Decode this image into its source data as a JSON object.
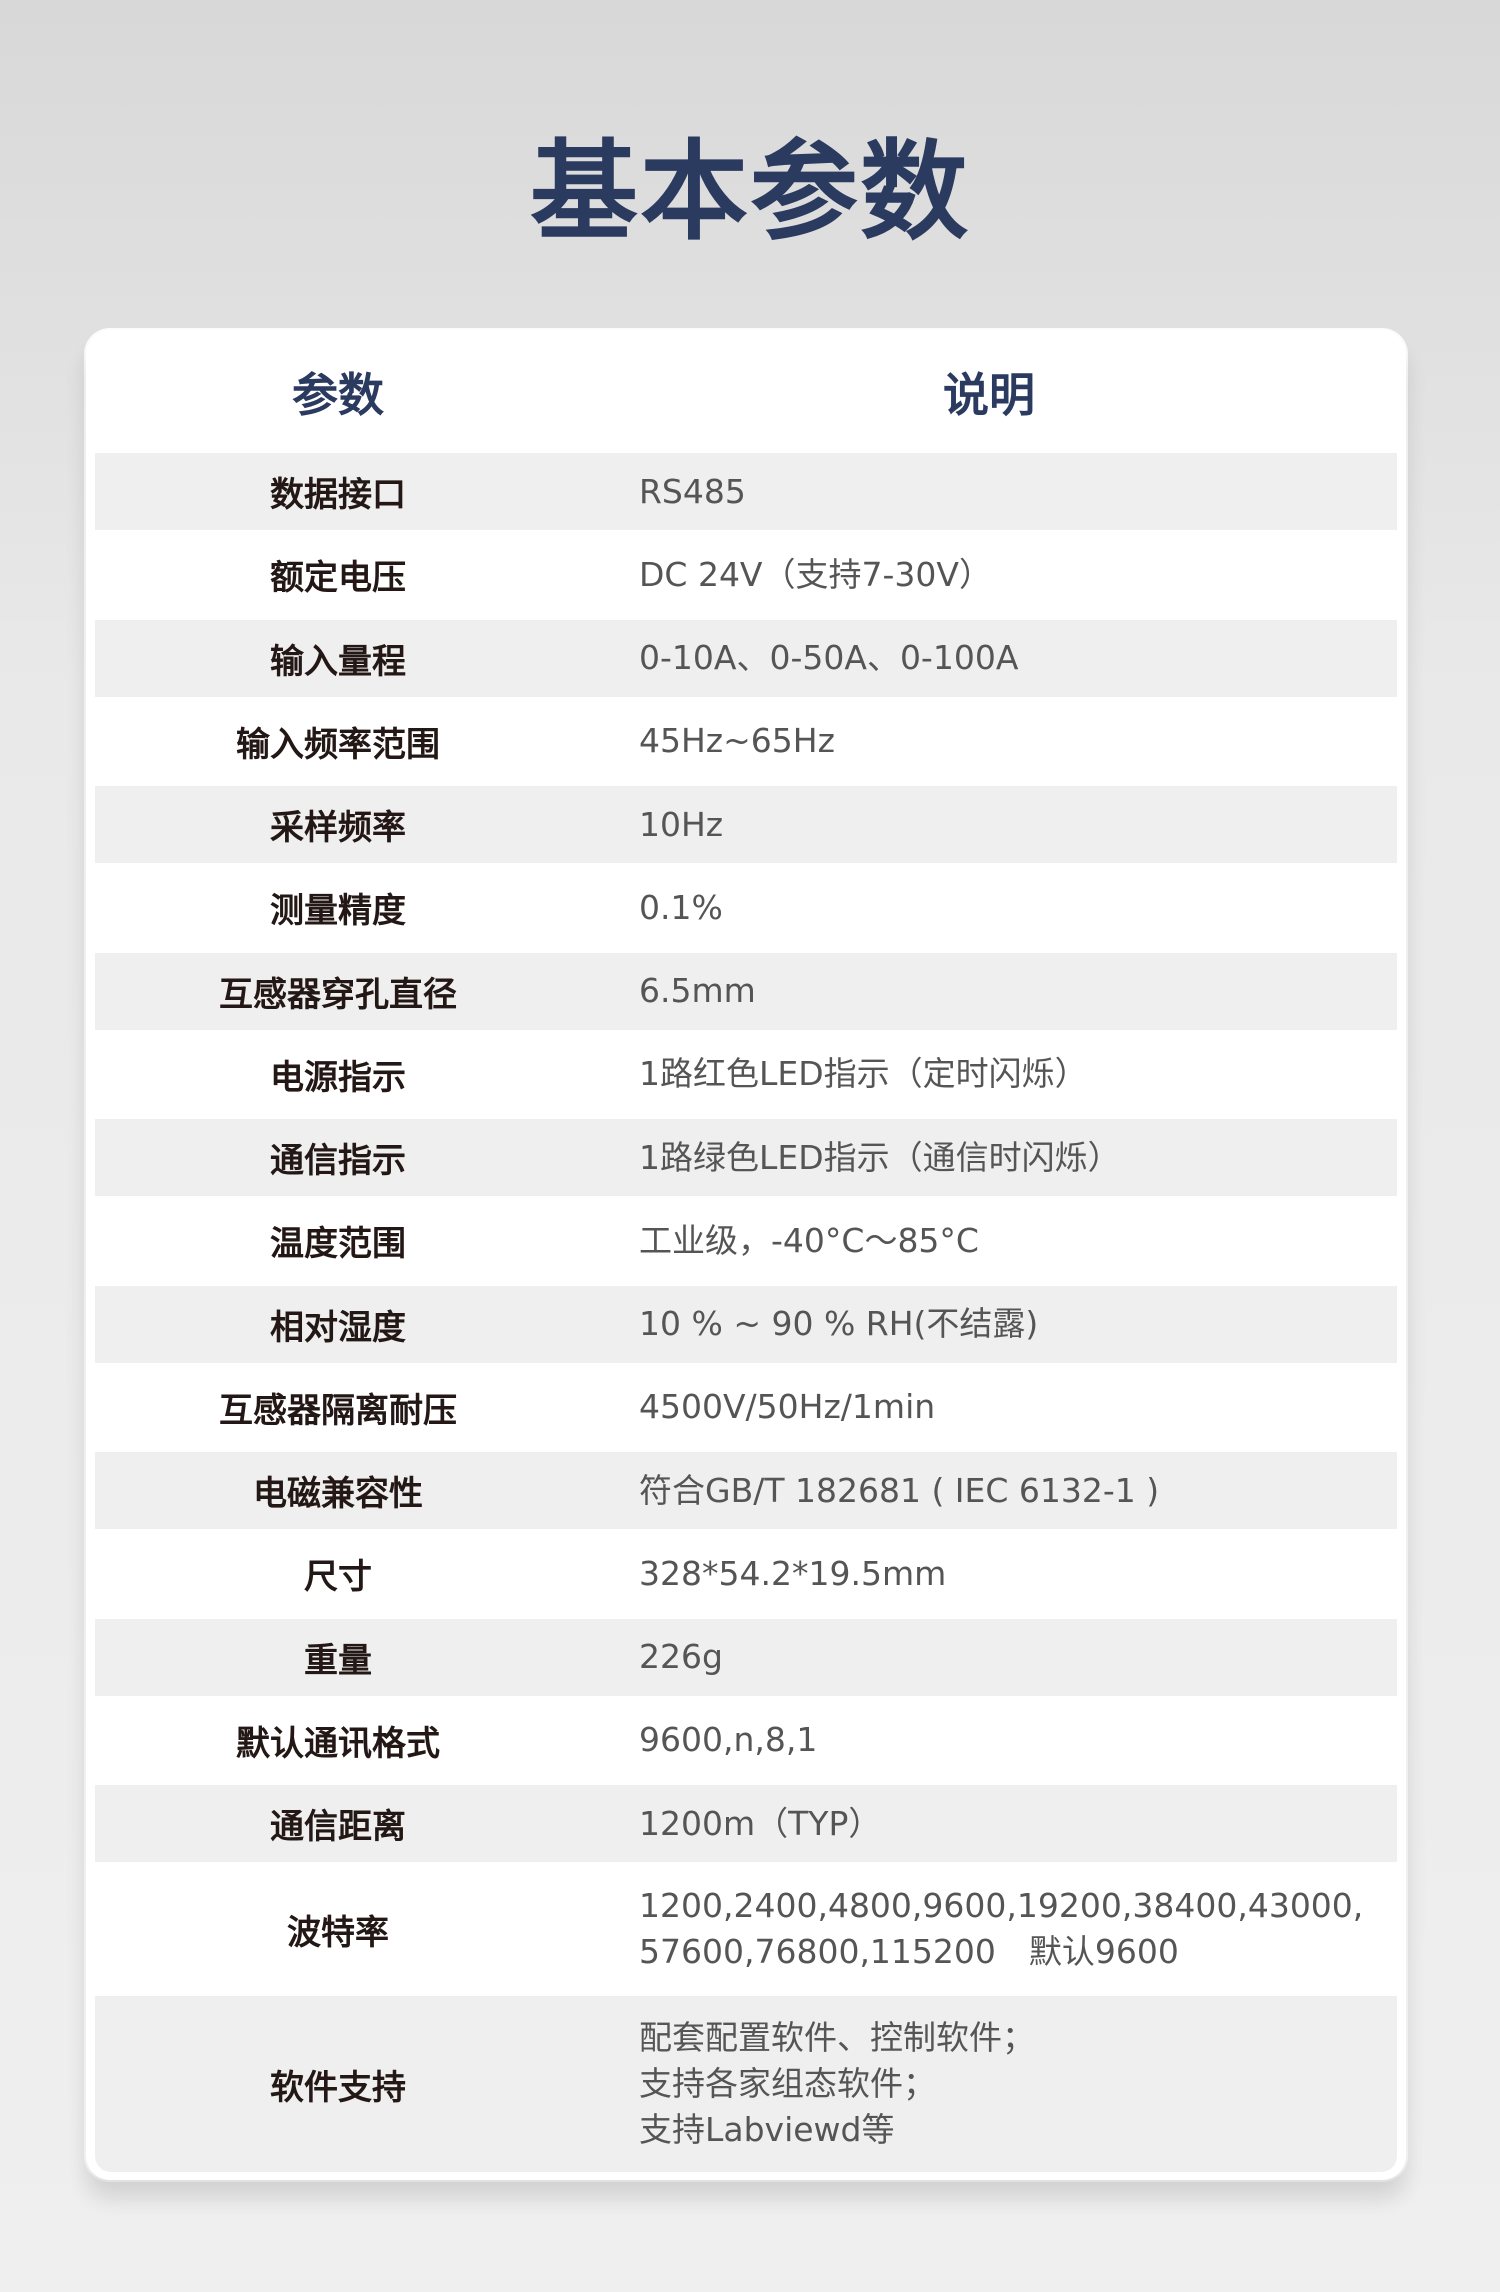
{
  "title": "基本参数",
  "table": {
    "headers": [
      "参数",
      "说明"
    ],
    "rows": [
      {
        "param": "数据接口",
        "desc": "RS485"
      },
      {
        "param": "额定电压",
        "desc": "DC 24V（支持7-30V）"
      },
      {
        "param": "输入量程",
        "desc": "0-10A、0-50A、0-100A"
      },
      {
        "param": "输入频率范围",
        "desc": "45Hz~65Hz"
      },
      {
        "param": "采样频率",
        "desc": "10Hz"
      },
      {
        "param": "测量精度",
        "desc": "0.1%"
      },
      {
        "param": "互感器穿孔直径",
        "desc": "6.5mm"
      },
      {
        "param": "电源指示",
        "desc": "1路红色LED指示（定时闪烁）"
      },
      {
        "param": "通信指示",
        "desc": "1路绿色LED指示（通信时闪烁）"
      },
      {
        "param": "温度范围",
        "desc": "工业级，-40°C～85°C"
      },
      {
        "param": "相对湿度",
        "desc": "10 % ~ 90 % RH(不结露)"
      },
      {
        "param": "互感器隔离耐压",
        "desc": "4500V/50Hz/1min"
      },
      {
        "param": "电磁兼容性",
        "desc": "符合GB/T 182681 ( IEC 6132-1 )"
      },
      {
        "param": "尺寸",
        "desc": "328*54.2*19.5mm"
      },
      {
        "param": "重量",
        "desc": "226g"
      },
      {
        "param": "默认通讯格式",
        "desc": "9600,n,8,1"
      },
      {
        "param": "通信距离",
        "desc": "1200m（TYP）"
      },
      {
        "param": "波特率",
        "desc": "1200,2400,4800,9600,19200,38400,43000,\n57600,76800,115200　默认9600"
      },
      {
        "param": "软件支持",
        "desc": "配套配置软件、控制软件；\n支持各家组态软件；\n支持Labviewd等"
      }
    ]
  }
}
